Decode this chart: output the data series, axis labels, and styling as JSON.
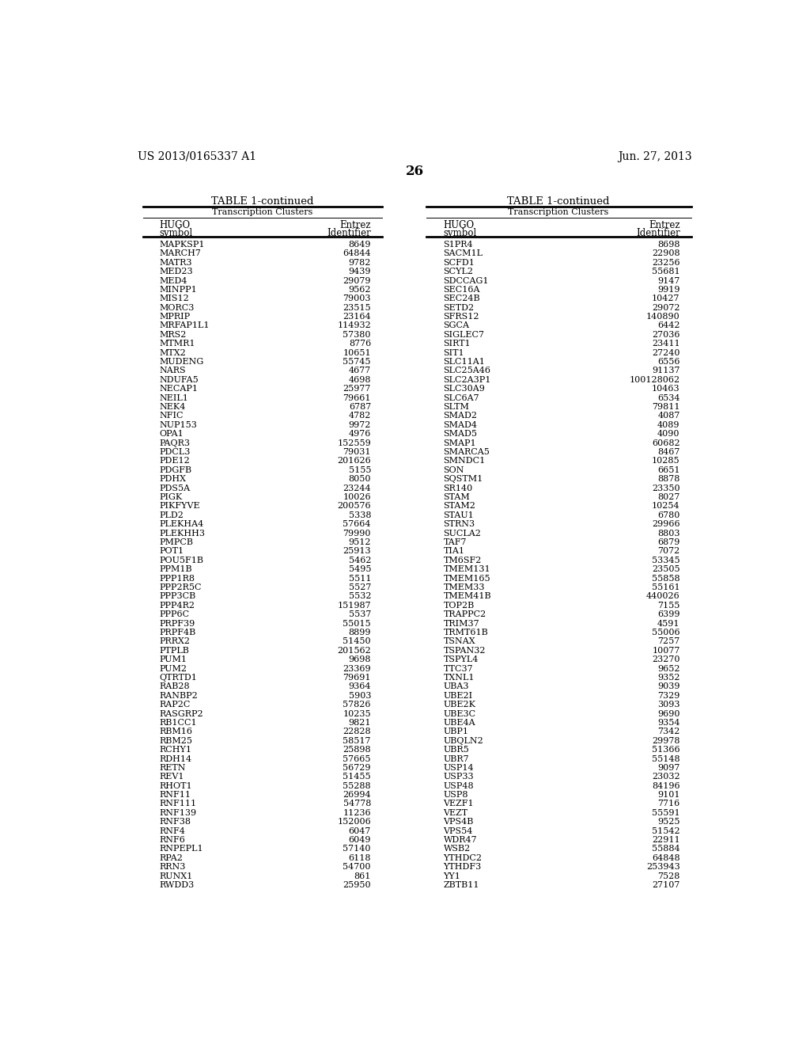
{
  "header_left": "US 2013/0165337 A1",
  "header_right": "Jun. 27, 2013",
  "page_number": "26",
  "table_title": "TABLE 1-continued",
  "section_header": "Transcription Clusters",
  "col1_header": [
    "HUGO",
    "symbol"
  ],
  "col2_header": [
    "Entrez",
    "Identifier"
  ],
  "left_table": {
    "hugo": [
      "MAPKSP1",
      "MARCH7",
      "MATR3",
      "MED23",
      "MED4",
      "MINPP1",
      "MIS12",
      "MORC3",
      "MPRIP",
      "MRFAP1L1",
      "MRS2",
      "MTMR1",
      "MTX2",
      "MUDENG",
      "NARS",
      "NDUFA5",
      "NECAP1",
      "NEIL1",
      "NEK4",
      "NFIC",
      "NUP153",
      "OPA1",
      "PAQR3",
      "PDCL3",
      "PDE12",
      "PDGFB",
      "PDHX",
      "PDS5A",
      "PIGK",
      "PIKFYVE",
      "PLD2",
      "PLEKHA4",
      "PLEKHH3",
      "PMPCB",
      "POT1",
      "POU5F1B",
      "PPM1B",
      "PPP1R8",
      "PPP2R5C",
      "PPP3CB",
      "PPP4R2",
      "PPP6C",
      "PRPF39",
      "PRPF4B",
      "PRRX2",
      "PTPLB",
      "PUM1",
      "PUM2",
      "QTRTD1",
      "RAB28",
      "RANBP2",
      "RAP2C",
      "RASGRP2",
      "RB1CC1",
      "RBM16",
      "RBM25",
      "RCHY1",
      "RDH14",
      "RETN",
      "REV1",
      "RHOT1",
      "RNF11",
      "RNF111",
      "RNF139",
      "RNF38",
      "RNF4",
      "RNF6",
      "RNPEPL1",
      "RPA2",
      "RRN3",
      "RUNX1",
      "RWDD3"
    ],
    "entrez": [
      "8649",
      "64844",
      "9782",
      "9439",
      "29079",
      "9562",
      "79003",
      "23515",
      "23164",
      "114932",
      "57380",
      "8776",
      "10651",
      "55745",
      "4677",
      "4698",
      "25977",
      "79661",
      "6787",
      "4782",
      "9972",
      "4976",
      "152559",
      "79031",
      "201626",
      "5155",
      "8050",
      "23244",
      "10026",
      "200576",
      "5338",
      "57664",
      "79990",
      "9512",
      "25913",
      "5462",
      "5495",
      "5511",
      "5527",
      "5532",
      "151987",
      "5537",
      "55015",
      "8899",
      "51450",
      "201562",
      "9698",
      "23369",
      "79691",
      "9364",
      "5903",
      "57826",
      "10235",
      "9821",
      "22828",
      "58517",
      "25898",
      "57665",
      "56729",
      "51455",
      "55288",
      "26994",
      "54778",
      "11236",
      "152006",
      "6047",
      "6049",
      "57140",
      "6118",
      "54700",
      "861",
      "25950"
    ]
  },
  "right_table": {
    "hugo": [
      "S1PR4",
      "SACM1L",
      "SCFD1",
      "SCYL2",
      "SDCCAG1",
      "SEC16A",
      "SEC24B",
      "SETD2",
      "SFRS12",
      "SGCA",
      "SIGLEC7",
      "SIRT1",
      "SIT1",
      "SLC11A1",
      "SLC25A46",
      "SLC2A3P1",
      "SLC30A9",
      "SLC6A7",
      "SLTM",
      "SMAD2",
      "SMAD4",
      "SMAD5",
      "SMAP1",
      "SMARCA5",
      "SMNDC1",
      "SON",
      "SQSTM1",
      "SR140",
      "STAM",
      "STAM2",
      "STAU1",
      "STRN3",
      "SUCLA2",
      "TAF7",
      "TIA1",
      "TM6SF2",
      "TMEM131",
      "TMEM165",
      "TMEM33",
      "TMEM41B",
      "TOP2B",
      "TRAPPC2",
      "TRIM37",
      "TRMT61B",
      "TSNAX",
      "TSPAN32",
      "TSPYL4",
      "TTC37",
      "TXNL1",
      "UBA3",
      "UBE2I",
      "UBE2K",
      "UBE3C",
      "UBE4A",
      "UBP1",
      "UBQLN2",
      "UBR5",
      "UBR7",
      "USP14",
      "USP33",
      "USP48",
      "USP8",
      "VEZF1",
      "VEZT",
      "VPS4B",
      "VPS54",
      "WDR47",
      "WSB2",
      "YTHDC2",
      "YTHDF3",
      "YY1",
      "ZBTB11"
    ],
    "entrez": [
      "8698",
      "22908",
      "23256",
      "55681",
      "9147",
      "9919",
      "10427",
      "29072",
      "140890",
      "6442",
      "27036",
      "23411",
      "27240",
      "6556",
      "91137",
      "100128062",
      "10463",
      "6534",
      "79811",
      "4087",
      "4089",
      "4090",
      "60682",
      "8467",
      "10285",
      "6651",
      "8878",
      "23350",
      "8027",
      "10254",
      "6780",
      "29966",
      "8803",
      "6879",
      "7072",
      "53345",
      "23505",
      "55858",
      "55161",
      "440026",
      "7155",
      "6399",
      "4591",
      "55006",
      "7257",
      "10077",
      "23270",
      "9652",
      "9352",
      "9039",
      "7329",
      "3093",
      "9690",
      "9354",
      "7342",
      "29978",
      "51366",
      "55148",
      "9097",
      "23032",
      "84196",
      "9101",
      "7716",
      "55591",
      "9525",
      "51542",
      "22911",
      "55884",
      "64848",
      "253943",
      "7528",
      "27107"
    ]
  }
}
